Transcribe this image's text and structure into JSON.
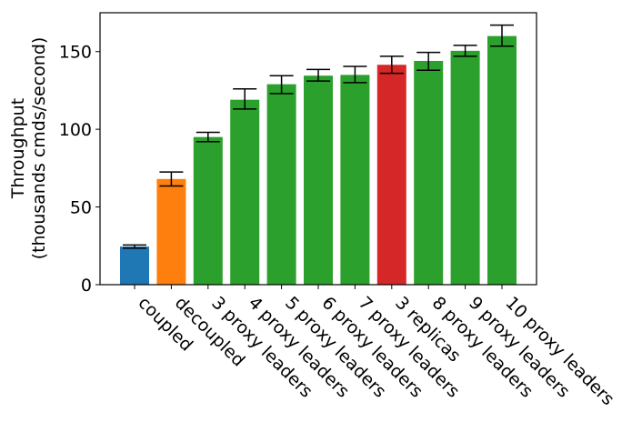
{
  "chart_data": {
    "type": "bar",
    "title": "",
    "xlabel": "",
    "ylabel_lines": [
      "Throughput",
      "(thousands cmds/second)"
    ],
    "ylim": [
      0,
      175
    ],
    "yticks": [
      0,
      50,
      100,
      150
    ],
    "grid": false,
    "categories": [
      "coupled",
      "decoupled",
      "3 proxy leaders",
      "4 proxy leaders",
      "5 proxy leaders",
      "6 proxy leaders",
      "7 proxy leaders",
      "3 replicas",
      "8 proxy leaders",
      "9 proxy leaders",
      "10 proxy leaders"
    ],
    "values": [
      24.5,
      68,
      95,
      119,
      129,
      134.5,
      135,
      141.5,
      144,
      150.5,
      160
    ],
    "errors": [
      [
        23.5,
        25.5
      ],
      [
        63.5,
        72.5
      ],
      [
        92,
        98
      ],
      [
        113,
        126
      ],
      [
        123,
        134.5
      ],
      [
        131,
        138.5
      ],
      [
        130,
        140.5
      ],
      [
        136,
        147
      ],
      [
        138,
        149.5
      ],
      [
        147,
        154
      ],
      [
        153.5,
        167
      ]
    ],
    "colors": [
      "#1f77b4",
      "#ff7f0e",
      "#2ca02c",
      "#2ca02c",
      "#2ca02c",
      "#2ca02c",
      "#2ca02c",
      "#d62728",
      "#2ca02c",
      "#2ca02c",
      "#2ca02c"
    ]
  }
}
